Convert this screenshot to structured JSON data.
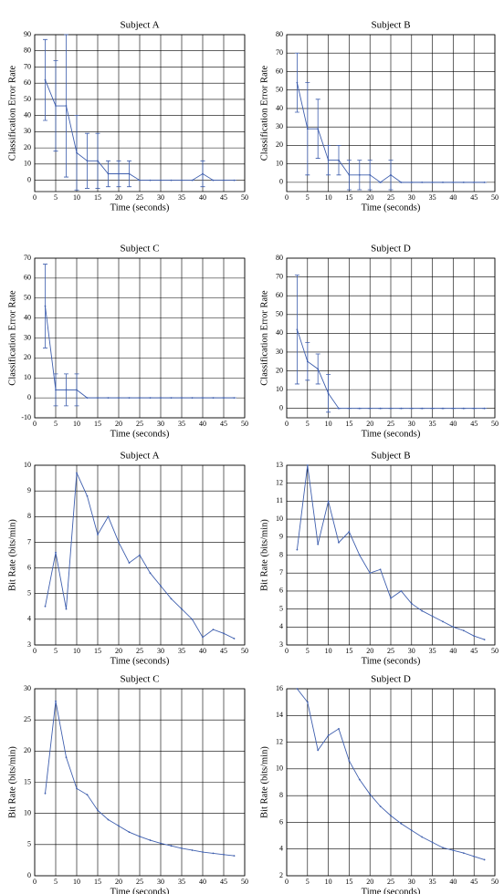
{
  "chart_data": [
    {
      "type": "line",
      "title": "Subject A",
      "xlabel": "Time (seconds)",
      "ylabel": "Classification Error Rate",
      "grid": true,
      "xlim": [
        0,
        50
      ],
      "xticks": [
        0,
        5,
        10,
        15,
        20,
        25,
        30,
        35,
        40,
        45,
        50
      ],
      "ylim": [
        -7,
        90
      ],
      "yticks": [
        0,
        10,
        20,
        30,
        40,
        50,
        60,
        70,
        80,
        90
      ],
      "x": [
        2.5,
        5,
        7.5,
        10,
        12.5,
        15,
        17.5,
        20,
        22.5,
        25,
        27.5,
        30,
        32.5,
        35,
        37.5,
        40,
        42.5,
        45,
        47.5
      ],
      "series": [
        {
          "color": "#3f5fae",
          "values": [
            62,
            46,
            46,
            17,
            12,
            12,
            4,
            4,
            4,
            0,
            0,
            0,
            0,
            0,
            0,
            4,
            0,
            0,
            0
          ],
          "errors": [
            25,
            28,
            44,
            23,
            17,
            17,
            8,
            8,
            8,
            0,
            0,
            0,
            0,
            0,
            0,
            8,
            0,
            0,
            0
          ]
        }
      ]
    },
    {
      "type": "line",
      "title": "Subject B",
      "xlabel": "Time (seconds)",
      "ylabel": "Classification Error Rate",
      "grid": true,
      "xlim": [
        0,
        50
      ],
      "xticks": [
        0,
        5,
        10,
        15,
        20,
        25,
        30,
        35,
        40,
        45,
        50
      ],
      "ylim": [
        -5,
        80
      ],
      "yticks": [
        0,
        10,
        20,
        30,
        40,
        50,
        60,
        70,
        80
      ],
      "x": [
        2.5,
        5,
        7.5,
        10,
        12.5,
        15,
        17.5,
        20,
        22.5,
        25,
        27.5,
        30,
        32.5,
        35,
        37.5,
        40,
        42.5,
        45,
        47.5
      ],
      "series": [
        {
          "color": "#3f5fae",
          "values": [
            54,
            29,
            29,
            12,
            12,
            4,
            4,
            4,
            0,
            4,
            0,
            0,
            0,
            0,
            0,
            0,
            0,
            0,
            0
          ],
          "errors": [
            16,
            25,
            16,
            8,
            8,
            8,
            8,
            8,
            0,
            8,
            0,
            0,
            0,
            0,
            0,
            0,
            0,
            0,
            0
          ]
        }
      ]
    },
    {
      "type": "line",
      "title": "Subject C",
      "xlabel": "Time (seconds)",
      "ylabel": "Classification Error Rate",
      "grid": true,
      "xlim": [
        0,
        50
      ],
      "xticks": [
        0,
        5,
        10,
        15,
        20,
        25,
        30,
        35,
        40,
        45,
        50
      ],
      "ylim": [
        -10,
        70
      ],
      "yticks": [
        -10,
        0,
        10,
        20,
        30,
        40,
        50,
        60,
        70
      ],
      "x": [
        2.5,
        5,
        7.5,
        10,
        12.5,
        15,
        17.5,
        20,
        22.5,
        25,
        27.5,
        30,
        32.5,
        35,
        37.5,
        40,
        42.5,
        45,
        47.5
      ],
      "series": [
        {
          "color": "#3f5fae",
          "values": [
            46,
            4,
            4,
            4,
            0,
            0,
            0,
            0,
            0,
            0,
            0,
            0,
            0,
            0,
            0,
            0,
            0,
            0,
            0
          ],
          "errors": [
            21,
            8,
            8,
            8,
            0,
            0,
            0,
            0,
            0,
            0,
            0,
            0,
            0,
            0,
            0,
            0,
            0,
            0,
            0
          ]
        }
      ]
    },
    {
      "type": "line",
      "title": "Subject D",
      "xlabel": "Time (seconds)",
      "ylabel": "Classification Error Rate",
      "grid": true,
      "xlim": [
        0,
        50
      ],
      "xticks": [
        0,
        5,
        10,
        15,
        20,
        25,
        30,
        35,
        40,
        45,
        50
      ],
      "ylim": [
        -5,
        80
      ],
      "yticks": [
        0,
        10,
        20,
        30,
        40,
        50,
        60,
        70,
        80
      ],
      "x": [
        2.5,
        5,
        7.5,
        10,
        12.5,
        15,
        17.5,
        20,
        22.5,
        25,
        27.5,
        30,
        32.5,
        35,
        37.5,
        40,
        42.5,
        45,
        47.5
      ],
      "series": [
        {
          "color": "#3f5fae",
          "values": [
            42,
            25,
            21,
            8,
            0,
            0,
            0,
            0,
            0,
            0,
            0,
            0,
            0,
            0,
            0,
            0,
            0,
            0,
            0
          ],
          "errors": [
            29,
            10,
            8,
            10,
            0,
            0,
            0,
            0,
            0,
            0,
            0,
            0,
            0,
            0,
            0,
            0,
            0,
            0,
            0
          ]
        }
      ]
    },
    {
      "type": "line",
      "title": "Subject A",
      "xlabel": "Time (seconds)",
      "ylabel": "Bit Rate (bits/min)",
      "grid": true,
      "xlim": [
        0,
        50
      ],
      "xticks": [
        0,
        5,
        10,
        15,
        20,
        25,
        30,
        35,
        40,
        45,
        50
      ],
      "ylim": [
        3,
        10
      ],
      "yticks": [
        3,
        4,
        5,
        6,
        7,
        8,
        9,
        10
      ],
      "x": [
        2.5,
        5,
        7.5,
        10,
        12.5,
        15,
        17.5,
        20,
        22.5,
        25,
        27.5,
        30,
        32.5,
        35,
        37.5,
        40,
        42.5,
        45,
        47.5
      ],
      "series": [
        {
          "color": "#3f5fae",
          "values": [
            4.5,
            6.6,
            4.4,
            9.7,
            8.8,
            7.3,
            8.0,
            7.0,
            6.2,
            6.5,
            5.8,
            5.3,
            4.8,
            4.4,
            4.0,
            3.3,
            3.6,
            3.45,
            3.25
          ]
        }
      ]
    },
    {
      "type": "line",
      "title": "Subject B",
      "xlabel": "Time (seconds)",
      "ylabel": "Bit Rate (bits/min)",
      "grid": true,
      "xlim": [
        0,
        50
      ],
      "xticks": [
        0,
        5,
        10,
        15,
        20,
        25,
        30,
        35,
        40,
        45,
        50
      ],
      "ylim": [
        3,
        13
      ],
      "yticks": [
        3,
        4,
        5,
        6,
        7,
        8,
        9,
        10,
        11,
        12,
        13
      ],
      "x": [
        2.5,
        5,
        7.5,
        10,
        12.5,
        15,
        17.5,
        20,
        22.5,
        25,
        27.5,
        30,
        32.5,
        35,
        37.5,
        40,
        42.5,
        45,
        47.5
      ],
      "series": [
        {
          "color": "#3f5fae",
          "values": [
            8.3,
            13,
            8.6,
            11,
            8.7,
            9.3,
            8.0,
            7.0,
            7.2,
            5.6,
            6.0,
            5.3,
            4.9,
            4.6,
            4.3,
            4.0,
            3.8,
            3.5,
            3.3
          ]
        }
      ]
    },
    {
      "type": "line",
      "title": "Subject C",
      "xlabel": "Time (seconds)",
      "ylabel": "Bit Rate (bits/min)",
      "grid": true,
      "xlim": [
        0,
        50
      ],
      "xticks": [
        0,
        5,
        10,
        15,
        20,
        25,
        30,
        35,
        40,
        45,
        50
      ],
      "ylim": [
        0,
        30
      ],
      "yticks": [
        0,
        5,
        10,
        15,
        20,
        25,
        30
      ],
      "x": [
        2.5,
        5,
        7.5,
        10,
        12.5,
        15,
        17.5,
        20,
        22.5,
        25,
        27.5,
        30,
        32.5,
        35,
        37.5,
        40,
        42.5,
        45,
        47.5
      ],
      "series": [
        {
          "color": "#3f5fae",
          "values": [
            13.2,
            28,
            19,
            14,
            13,
            10.5,
            9,
            8,
            7,
            6.3,
            5.7,
            5.2,
            4.8,
            4.4,
            4.1,
            3.8,
            3.6,
            3.4,
            3.2
          ]
        }
      ]
    },
    {
      "type": "line",
      "title": "Subject D",
      "xlabel": "Time (seconds)",
      "ylabel": "Bit Rate (bits/min)",
      "grid": true,
      "xlim": [
        0,
        50
      ],
      "xticks": [
        0,
        5,
        10,
        15,
        20,
        25,
        30,
        35,
        40,
        45,
        50
      ],
      "ylim": [
        2,
        16
      ],
      "yticks": [
        2,
        4,
        6,
        8,
        10,
        12,
        14,
        16
      ],
      "x": [
        2.5,
        5,
        7.5,
        10,
        12.5,
        15,
        17.5,
        20,
        22.5,
        25,
        27.5,
        30,
        32.5,
        35,
        37.5,
        40,
        42.5,
        45,
        47.5
      ],
      "series": [
        {
          "color": "#3f5fae",
          "values": [
            16,
            15,
            11.4,
            12.5,
            13,
            10.6,
            9.2,
            8.1,
            7.2,
            6.5,
            5.9,
            5.4,
            4.9,
            4.5,
            4.1,
            3.9,
            3.7,
            3.45,
            3.2
          ]
        }
      ]
    }
  ]
}
